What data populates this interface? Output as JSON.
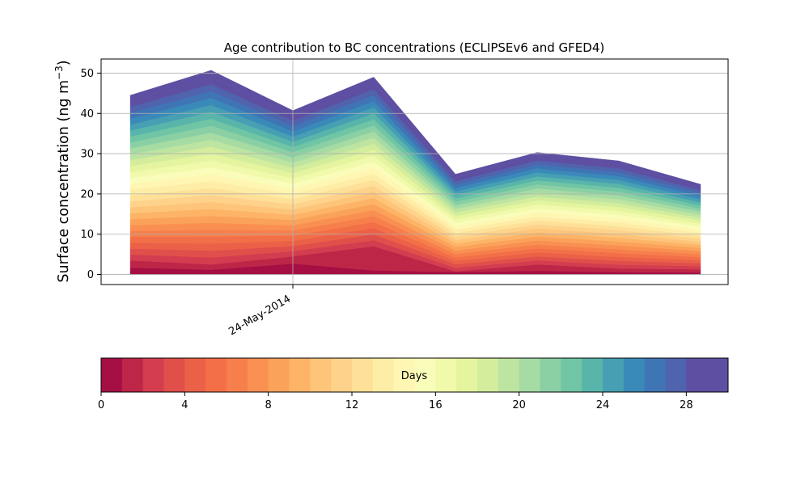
{
  "chart_data": {
    "type": "area",
    "title": "Age contribution to BC concentrations (ECLIPSEv6 and GFED4)",
    "ylabel_main": "Surface concentration (ng m",
    "ylabel_sup": "−3",
    "ylabel_tail": ")",
    "ylim": [
      -2.5,
      53.5
    ],
    "yticks": [
      0,
      10,
      20,
      30,
      40,
      50
    ],
    "grid": true,
    "x_date_label": "24-May-2014",
    "stack_layers": 30,
    "stack_totals": [
      44.5,
      50.7,
      40.7,
      49.0,
      24.9,
      30.3,
      28.2,
      22.4
    ],
    "bottom_layer": [
      1.7,
      1.2,
      2.7,
      1.0,
      0.6,
      0.9,
      0.6,
      0.5
    ],
    "second_layer_top": [
      3.5,
      2.5,
      4.5,
      7.0,
      0.8,
      2.5,
      1.5,
      1.3
    ],
    "colorbar": {
      "label": "Days",
      "ticks": [
        "0",
        "4",
        "8",
        "12",
        "16",
        "20",
        "24",
        "28"
      ],
      "range": [
        0,
        30
      ],
      "colors": [
        "#a50f44",
        "#be2648",
        "#d43d4f",
        "#e04f4a",
        "#eb6147",
        "#f36f47",
        "#f67f4c",
        "#f99052",
        "#fba25a",
        "#fdb466",
        "#fec47a",
        "#fed28a",
        "#fee098",
        "#feeda6",
        "#fff6b3",
        "#fafdb9",
        "#f1f9ab",
        "#e5f49e",
        "#d3ed9d",
        "#bde4a0",
        "#a6dba4",
        "#8ad0a4",
        "#70c5a5",
        "#59b5aa",
        "#469fb2",
        "#3a8ab9",
        "#3f75b5",
        "#5063ad",
        "#5e4fa2",
        "#5e4fa2"
      ]
    }
  }
}
